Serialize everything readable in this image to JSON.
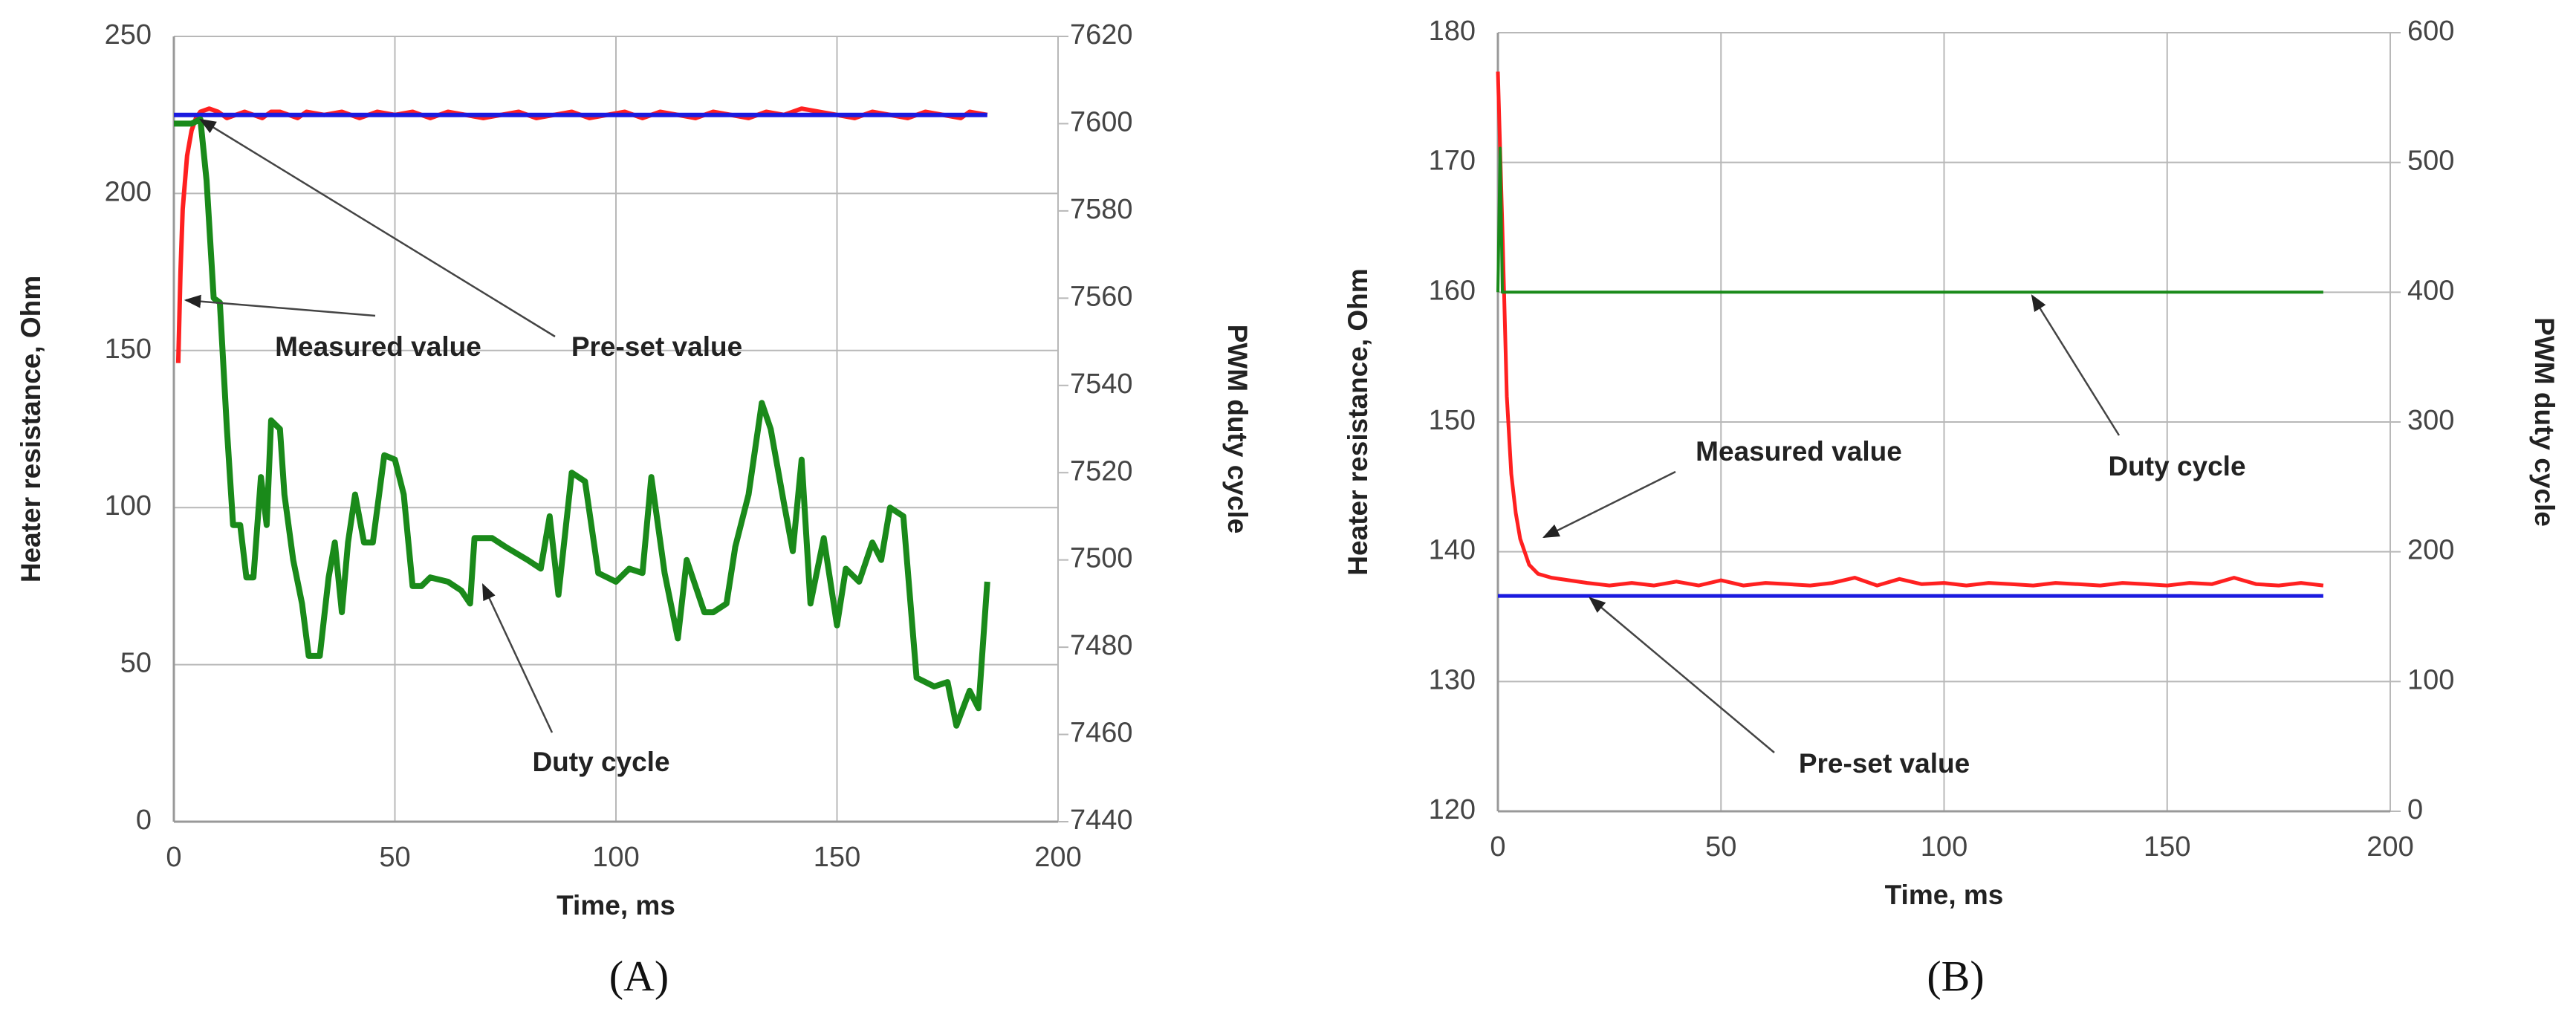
{
  "chart_data": [
    {
      "type": "line",
      "caption": "(A)",
      "xlabel": "Time, ms",
      "ylabel": "Heater resistance, Ohm",
      "y2label": "PWM duty cycle",
      "xlim": [
        0,
        200
      ],
      "xticks": [
        0,
        50,
        100,
        150,
        200
      ],
      "ylim": [
        0,
        250
      ],
      "yticks": [
        0,
        50,
        100,
        150,
        200,
        250
      ],
      "y2lim": [
        7440,
        7620
      ],
      "y2ticks": [
        7440,
        7460,
        7480,
        7500,
        7520,
        7540,
        7560,
        7580,
        7600,
        7620
      ],
      "grid": true,
      "series": [
        {
          "name": "Measured value",
          "color": "#ff2020",
          "x": [
            1,
            1.5,
            2,
            3,
            4,
            5,
            6,
            8,
            10,
            12,
            14,
            16,
            18,
            20,
            22,
            24,
            26,
            28,
            30,
            34,
            38,
            42,
            46,
            50,
            54,
            58,
            62,
            66,
            70,
            74,
            78,
            82,
            86,
            90,
            94,
            98,
            102,
            106,
            110,
            114,
            118,
            122,
            126,
            130,
            134,
            138,
            142,
            146,
            150,
            154,
            158,
            162,
            166,
            170,
            174,
            178,
            180,
            184
          ],
          "values": [
            146,
            175,
            195,
            212,
            220,
            224,
            226,
            227,
            226,
            224,
            225,
            226,
            225,
            224,
            226,
            226,
            225,
            224,
            226,
            225,
            226,
            224,
            226,
            225,
            226,
            224,
            226,
            225,
            224,
            225,
            226,
            224,
            225,
            226,
            224,
            225,
            226,
            224,
            226,
            225,
            224,
            226,
            225,
            224,
            226,
            225,
            227,
            226,
            225,
            224,
            226,
            225,
            224,
            226,
            225,
            224,
            226,
            225
          ]
        },
        {
          "name": "Pre-set value",
          "color": "#1a1adf",
          "x": [
            0,
            184
          ],
          "values": [
            225,
            225
          ]
        },
        {
          "name": "Duty cycle",
          "color": "#1a8a1a",
          "axis": "y2",
          "x": [
            0,
            4,
            6,
            7.4,
            9,
            10.4,
            12,
            13.4,
            15,
            16.4,
            18,
            19.7,
            21,
            22,
            24,
            25,
            27,
            29,
            30.5,
            33,
            35,
            36.4,
            38,
            39.4,
            41,
            43,
            45,
            47.6,
            50,
            52,
            54,
            56,
            58,
            62,
            65,
            67,
            68,
            72,
            75,
            80,
            83,
            85,
            87,
            90,
            93,
            96,
            100,
            103,
            106,
            108,
            111,
            114,
            116,
            120,
            122,
            125,
            127,
            130,
            133,
            135,
            138,
            140,
            142,
            144,
            147,
            150,
            152,
            155,
            158,
            160,
            162,
            165,
            168,
            172,
            175,
            177,
            180,
            182,
            184
          ],
          "values": [
            7600,
            7600,
            7601,
            7587,
            7560,
            7559,
            7530,
            7508,
            7508,
            7496,
            7496,
            7519,
            7508,
            7532,
            7530,
            7515,
            7500,
            7490,
            7478,
            7478,
            7496,
            7504,
            7488,
            7504,
            7515,
            7504,
            7504,
            7524,
            7523,
            7515,
            7494,
            7494,
            7496,
            7495,
            7493,
            7490,
            7505,
            7505,
            7503,
            7500,
            7498,
            7510,
            7492,
            7520,
            7518,
            7497,
            7495,
            7498,
            7497,
            7519,
            7497,
            7482,
            7500,
            7488,
            7488,
            7490,
            7503,
            7515,
            7536,
            7530,
            7513,
            7502,
            7523,
            7490,
            7505,
            7485,
            7498,
            7495,
            7504,
            7500,
            7512,
            7510,
            7473,
            7471,
            7472,
            7462,
            7470,
            7466,
            7495
          ]
        }
      ]
    },
    {
      "type": "line",
      "caption": "(B)",
      "xlabel": "Time, ms",
      "ylabel": "Heater resistance, Ohm",
      "y2label": "PWM duty cycle",
      "xlim": [
        0,
        200
      ],
      "xticks": [
        0,
        50,
        100,
        150,
        200
      ],
      "ylim": [
        120,
        180
      ],
      "yticks": [
        120,
        130,
        140,
        150,
        160,
        170,
        180
      ],
      "y2lim": [
        0,
        600
      ],
      "y2ticks": [
        0,
        100,
        200,
        300,
        400,
        500,
        600
      ],
      "grid": true,
      "series": [
        {
          "name": "Measured value",
          "color": "#ff2020",
          "x": [
            0,
            1,
            2,
            3,
            4,
            5,
            7,
            9,
            12,
            16,
            20,
            25,
            30,
            35,
            40,
            45,
            50,
            55,
            60,
            65,
            70,
            75,
            80,
            85,
            90,
            95,
            100,
            105,
            110,
            115,
            120,
            125,
            130,
            135,
            140,
            145,
            150,
            155,
            160,
            165,
            170,
            175,
            180,
            185
          ],
          "values": [
            177,
            165,
            152,
            146,
            143,
            141,
            139,
            138.3,
            138,
            137.8,
            137.6,
            137.4,
            137.6,
            137.4,
            137.7,
            137.4,
            137.8,
            137.4,
            137.6,
            137.5,
            137.4,
            137.6,
            138,
            137.4,
            137.9,
            137.5,
            137.6,
            137.4,
            137.6,
            137.5,
            137.4,
            137.6,
            137.5,
            137.4,
            137.6,
            137.5,
            137.4,
            137.6,
            137.5,
            138,
            137.5,
            137.4,
            137.6,
            137.4
          ]
        },
        {
          "name": "Pre-set value",
          "color": "#1a1adf",
          "x": [
            0,
            185
          ],
          "values": [
            136.6,
            136.6
          ]
        },
        {
          "name": "Duty cycle",
          "color": "#1a8a1a",
          "axis": "y2",
          "x": [
            0,
            0.5,
            1,
            185
          ],
          "values": [
            400,
            511,
            400,
            400
          ]
        }
      ]
    }
  ]
}
